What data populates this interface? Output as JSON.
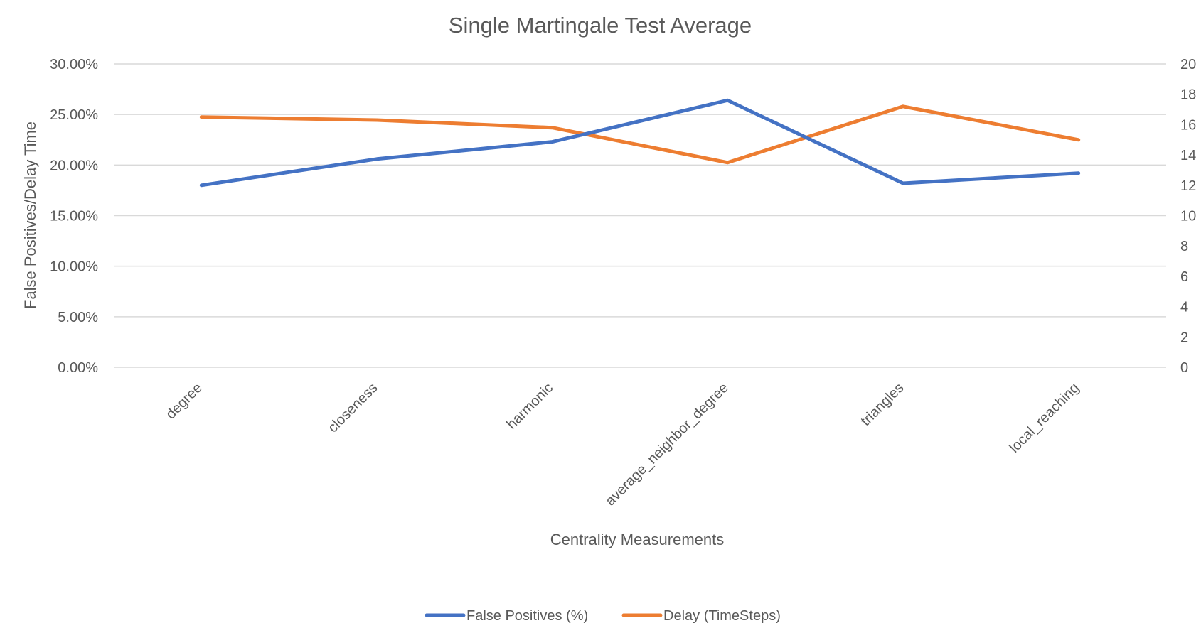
{
  "chart_data": {
    "type": "line",
    "title": "Single Martingale Test Average",
    "xlabel": "Centrality Measurements",
    "ylabel": "False Positives/Delay Time",
    "categories": [
      "degree",
      "closeness",
      "harmonic",
      "average_neighbor_degree",
      "triangles",
      "local_reaching"
    ],
    "y_left": {
      "min": 0,
      "max": 0.3,
      "step": 0.05,
      "ticks": [
        "0.00%",
        "5.00%",
        "10.00%",
        "15.00%",
        "20.00%",
        "25.00%",
        "30.00%"
      ]
    },
    "y_right": {
      "min": 0,
      "max": 20,
      "step": 2,
      "ticks": [
        "0",
        "2",
        "4",
        "6",
        "8",
        "10",
        "12",
        "14",
        "16",
        "18",
        "20"
      ]
    },
    "grid": true,
    "legend_position": "bottom",
    "series": [
      {
        "name": "False Positives (%)",
        "axis": "left",
        "color": "#4472c4",
        "values": [
          0.18,
          0.206,
          0.223,
          0.264,
          0.182,
          0.192
        ]
      },
      {
        "name": "Delay (TimeSteps)",
        "axis": "right",
        "color": "#ed7d31",
        "values": [
          16.5,
          16.3,
          15.8,
          13.5,
          17.2,
          15.0
        ]
      }
    ]
  }
}
